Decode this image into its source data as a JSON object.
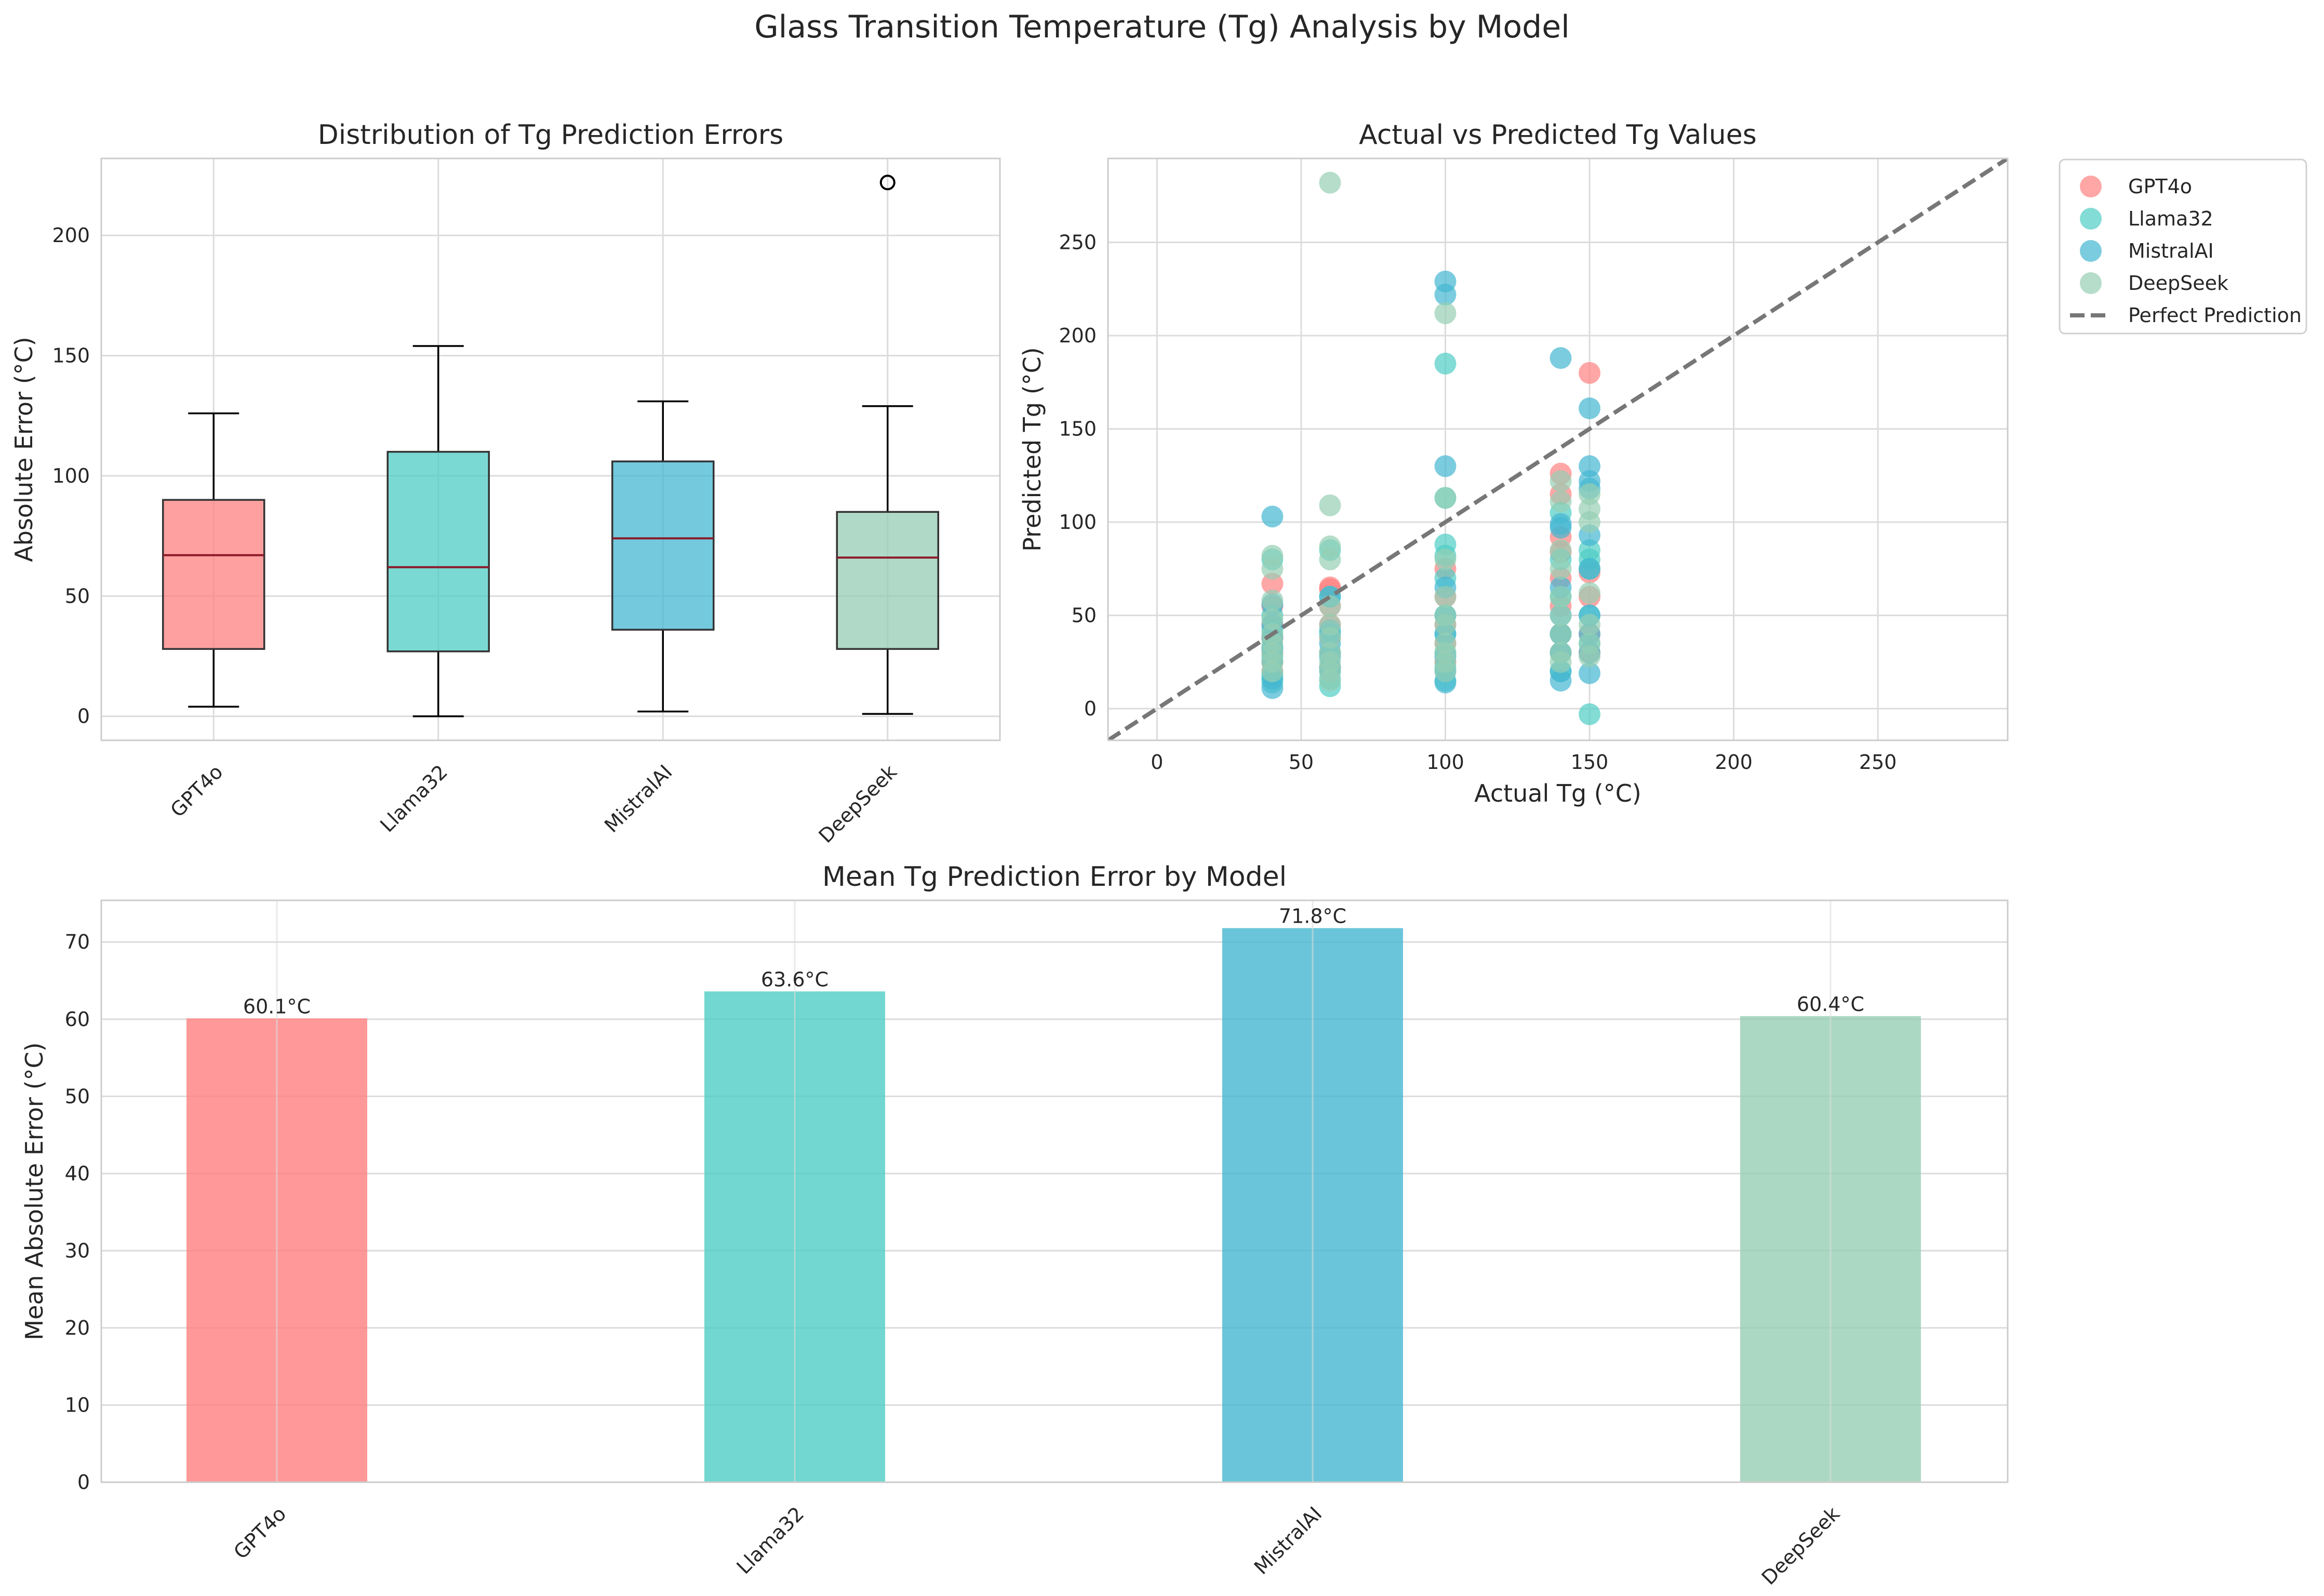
{
  "page_title": "Glass Transition Temperature (Tg) Analysis by Model",
  "colors": {
    "GPT4o": "#ff8080",
    "Llama32": "#4ecdc4",
    "MistralAI": "#45b7d1",
    "DeepSeek": "#96ceb4",
    "median": "#8b1a2a",
    "perfect_line": "#777777",
    "grid": "#dcdcdc"
  },
  "chart_data": [
    {
      "id": "box",
      "type": "box",
      "title": "Distribution of Tg Prediction Errors",
      "xlabel": "",
      "ylabel": "Absolute Error (°C)",
      "ylim": [
        -10,
        232
      ],
      "yticks": [
        0,
        50,
        100,
        150,
        200
      ],
      "ytick_labels": [
        "0",
        "50",
        "100",
        "150",
        "200"
      ],
      "categories": [
        "GPT4o",
        "Llama32",
        "MistralAI",
        "DeepSeek"
      ],
      "boxes": [
        {
          "name": "GPT4o",
          "whisker_low": 4,
          "q1": 28,
          "median": 67,
          "q3": 90,
          "whisker_high": 126,
          "outliers": []
        },
        {
          "name": "Llama32",
          "whisker_low": 0,
          "q1": 27,
          "median": 62,
          "q3": 110,
          "whisker_high": 154,
          "outliers": []
        },
        {
          "name": "MistralAI",
          "whisker_low": 2,
          "q1": 36,
          "median": 74,
          "q3": 106,
          "whisker_high": 131,
          "outliers": []
        },
        {
          "name": "DeepSeek",
          "whisker_low": 1,
          "q1": 28,
          "median": 66,
          "q3": 85,
          "whisker_high": 129,
          "outliers": [
            222
          ]
        }
      ]
    },
    {
      "id": "scatter",
      "type": "scatter",
      "title": "Actual vs Predicted Tg Values",
      "xlabel": "Actual Tg (°C)",
      "ylabel": "Predicted Tg (°C)",
      "xlim": [
        -17,
        295
      ],
      "ylim": [
        -17,
        295
      ],
      "xticks": [
        0,
        50,
        100,
        150,
        200,
        250
      ],
      "xtick_labels": [
        "0",
        "50",
        "100",
        "150",
        "200",
        "250"
      ],
      "yticks": [
        0,
        50,
        100,
        150,
        200,
        250
      ],
      "ytick_labels": [
        "0",
        "50",
        "100",
        "150",
        "200",
        "250"
      ],
      "reference_line": {
        "name": "Perfect Prediction",
        "x": [
          -17,
          295
        ],
        "y": [
          -17,
          295
        ]
      },
      "legend_position": "outside-top-right",
      "series": [
        {
          "name": "GPT4o",
          "points": [
            [
              40,
              67
            ],
            [
              40,
              55
            ],
            [
              40,
              45
            ],
            [
              40,
              38
            ],
            [
              40,
              30
            ],
            [
              40,
              25
            ],
            [
              40,
              20
            ],
            [
              60,
              65
            ],
            [
              60,
              64
            ],
            [
              60,
              55
            ],
            [
              60,
              45
            ],
            [
              60,
              38
            ],
            [
              60,
              30
            ],
            [
              60,
              22
            ],
            [
              100,
              75
            ],
            [
              100,
              60
            ],
            [
              100,
              45
            ],
            [
              100,
              35
            ],
            [
              100,
              25
            ],
            [
              140,
              126
            ],
            [
              140,
              115
            ],
            [
              140,
              92
            ],
            [
              140,
              84
            ],
            [
              140,
              70
            ],
            [
              140,
              55
            ],
            [
              140,
              40
            ],
            [
              140,
              30
            ],
            [
              150,
              180
            ],
            [
              150,
              73
            ],
            [
              150,
              60
            ],
            [
              150,
              40
            ],
            [
              150,
              30
            ]
          ]
        },
        {
          "name": "Llama32",
          "points": [
            [
              40,
              80
            ],
            [
              40,
              50
            ],
            [
              40,
              42
            ],
            [
              40,
              33
            ],
            [
              40,
              28
            ],
            [
              40,
              18
            ],
            [
              40,
              14
            ],
            [
              60,
              85
            ],
            [
              60,
              60
            ],
            [
              60,
              40
            ],
            [
              60,
              30
            ],
            [
              60,
              22
            ],
            [
              60,
              16
            ],
            [
              60,
              12
            ],
            [
              100,
              185
            ],
            [
              100,
              113
            ],
            [
              100,
              88
            ],
            [
              100,
              82
            ],
            [
              100,
              70
            ],
            [
              100,
              50
            ],
            [
              100,
              40
            ],
            [
              100,
              30
            ],
            [
              100,
              22
            ],
            [
              100,
              15
            ],
            [
              140,
              105
            ],
            [
              140,
              80
            ],
            [
              140,
              60
            ],
            [
              140,
              40
            ],
            [
              140,
              30
            ],
            [
              140,
              20
            ],
            [
              150,
              85
            ],
            [
              150,
              80
            ],
            [
              150,
              75
            ],
            [
              150,
              50
            ],
            [
              150,
              35
            ],
            [
              150,
              -3
            ]
          ]
        },
        {
          "name": "MistralAI",
          "points": [
            [
              40,
              103
            ],
            [
              40,
              56
            ],
            [
              40,
              45
            ],
            [
              40,
              38
            ],
            [
              40,
              32
            ],
            [
              40,
              25
            ],
            [
              40,
              16
            ],
            [
              40,
              11
            ],
            [
              60,
              60
            ],
            [
              60,
              42
            ],
            [
              60,
              35
            ],
            [
              60,
              28
            ],
            [
              60,
              20
            ],
            [
              100,
              229
            ],
            [
              100,
              222
            ],
            [
              100,
              130
            ],
            [
              100,
              65
            ],
            [
              100,
              50
            ],
            [
              100,
              40
            ],
            [
              100,
              28
            ],
            [
              100,
              20
            ],
            [
              100,
              14
            ],
            [
              140,
              188
            ],
            [
              140,
              99
            ],
            [
              140,
              97
            ],
            [
              140,
              65
            ],
            [
              140,
              50
            ],
            [
              140,
              40
            ],
            [
              140,
              30
            ],
            [
              140,
              20
            ],
            [
              140,
              15
            ],
            [
              150,
              161
            ],
            [
              150,
              130
            ],
            [
              150,
              122
            ],
            [
              150,
              118
            ],
            [
              150,
              93
            ],
            [
              150,
              75
            ],
            [
              150,
              50
            ],
            [
              150,
              40
            ],
            [
              150,
              30
            ],
            [
              150,
              19
            ]
          ]
        },
        {
          "name": "DeepSeek",
          "points": [
            [
              40,
              82
            ],
            [
              40,
              75
            ],
            [
              40,
              58
            ],
            [
              40,
              48
            ],
            [
              40,
              40
            ],
            [
              40,
              35
            ],
            [
              40,
              30
            ],
            [
              40,
              25
            ],
            [
              40,
              20
            ],
            [
              60,
              282
            ],
            [
              60,
              109
            ],
            [
              60,
              87
            ],
            [
              60,
              80
            ],
            [
              60,
              55
            ],
            [
              60,
              45
            ],
            [
              60,
              38
            ],
            [
              60,
              30
            ],
            [
              60,
              25
            ],
            [
              60,
              20
            ],
            [
              60,
              15
            ],
            [
              100,
              212
            ],
            [
              100,
              113
            ],
            [
              100,
              80
            ],
            [
              100,
              60
            ],
            [
              100,
              50
            ],
            [
              100,
              45
            ],
            [
              100,
              35
            ],
            [
              100,
              30
            ],
            [
              100,
              25
            ],
            [
              100,
              20
            ],
            [
              140,
              122
            ],
            [
              140,
              111
            ],
            [
              140,
              85
            ],
            [
              140,
              75
            ],
            [
              140,
              60
            ],
            [
              140,
              50
            ],
            [
              140,
              40
            ],
            [
              140,
              30
            ],
            [
              140,
              25
            ],
            [
              150,
              115
            ],
            [
              150,
              107
            ],
            [
              150,
              100
            ],
            [
              150,
              62
            ],
            [
              150,
              45
            ],
            [
              150,
              35
            ],
            [
              150,
              28
            ]
          ]
        }
      ]
    },
    {
      "id": "bar",
      "type": "bar",
      "title": "Mean Tg Prediction Error by Model",
      "xlabel": "",
      "ylabel": "Mean Absolute Error (°C)",
      "ylim": [
        0,
        75.4
      ],
      "yticks": [
        0,
        10,
        20,
        30,
        40,
        50,
        60,
        70
      ],
      "ytick_labels": [
        "0",
        "10",
        "20",
        "30",
        "40",
        "50",
        "60",
        "70"
      ],
      "categories": [
        "GPT4o",
        "Llama32",
        "MistralAI",
        "DeepSeek"
      ],
      "values": [
        60.1,
        63.6,
        71.8,
        60.4
      ],
      "data_labels": [
        "60.1°C",
        "63.6°C",
        "71.8°C",
        "60.4°C"
      ]
    }
  ]
}
